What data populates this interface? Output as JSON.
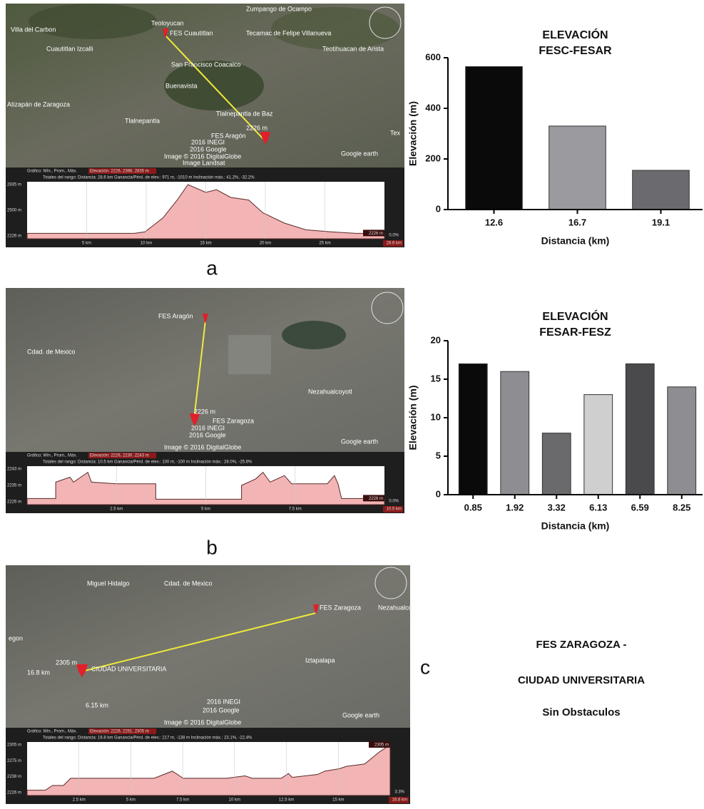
{
  "chart_data": [
    {
      "type": "bar",
      "title": "ELEVACIÓN",
      "subtitle": "FESC-FESAR",
      "x_label": "Distancia (km)",
      "y_label": "Elevación (m)",
      "categories": [
        "12.6",
        "16.7",
        "19.1"
      ],
      "values": [
        565,
        330,
        155
      ],
      "colors": [
        "#0a0a0a",
        "#9a9a9f",
        "#6b6b6f"
      ],
      "ylim": [
        0,
        600
      ],
      "yticks": [
        0,
        200,
        400,
        600
      ]
    },
    {
      "type": "bar",
      "title": "ELEVACIÓN",
      "subtitle": "FESAR-FESZ",
      "x_label": "Distancia (km)",
      "y_label": "Elevación (m)",
      "categories": [
        "0.85",
        "1.92",
        "3.32",
        "6.13",
        "6.59",
        "8.25"
      ],
      "values": [
        17,
        16,
        8,
        13,
        17,
        14
      ],
      "colors": [
        "#0a0a0a",
        "#8e8e92",
        "#6a6a6c",
        "#cfcfcf",
        "#4a4a4c",
        "#8e8e92"
      ],
      "ylim": [
        0,
        20
      ],
      "yticks": [
        0,
        5,
        10,
        15,
        20
      ]
    }
  ],
  "panels": [
    {
      "label": "a",
      "map_labels": [
        "Zumpango de Ocampo",
        "Villa del Carbon",
        "Teoloyucan",
        "FES Cuautitlan",
        "Tecamac de Felipe Villanueva",
        "Teotihuacan de Arista",
        "Cuautitlan Izcalli",
        "San Francisco Coacalco",
        "Buenavista",
        "Atizapán de Zaragoza",
        "Tlalnepantla de Baz",
        "Tlalnepantla",
        "FES Aragón",
        "2226 m",
        "Tex",
        "2016 INEGI",
        "2016 Google",
        "Image © 2016 DigitalGlobe",
        "Image Landsat",
        "Google earth"
      ],
      "profile": {
        "legend": "Gráfico: Mín., Prom., Máx.",
        "elevation": "Elevación: 2226, 2366, 2835 m",
        "totals": "Totales del rango: Distancia: 28.6 km   Ganancia/Pérd. de elev.: 971 m, -1010 m   Inclinación máx.: 41.2%, -32.2%",
        "yticks": [
          "2835 m",
          "2500 m",
          "2226 m"
        ],
        "xticks": [
          "5 km",
          "10 km",
          "15 km",
          "20 km",
          "25 km"
        ],
        "end_elevation": "2226 m",
        "end_slope": "0.0%",
        "end_distance": "28.6 km"
      }
    },
    {
      "label": "b",
      "map_labels": [
        "FES Aragón",
        "Cdad. de Mexico",
        "Nezahualcoyotl",
        "2226 m",
        "FES Zaragoza",
        "2016 INEGI",
        "2016 Google",
        "Image © 2016 DigitalGlobe",
        "Google earth"
      ],
      "profile": {
        "legend": "Gráfico: Mín., Prom., Máx.",
        "elevation": "Elevación: 2226, 2230, 2243 m",
        "totals": "Totales del rango: Distancia: 10.5 km   Ganancia/Pérd. de elev.: 100 m, -100 m   Inclinación máx.: 28.0%, -25.6%",
        "yticks": [
          "2243 m",
          "2235 m",
          "2226 m"
        ],
        "xticks": [
          "2.5 km",
          "5 km",
          "7.5 km"
        ],
        "end_elevation": "2226 m",
        "end_slope": "0.0%",
        "end_distance": "10.5 km"
      }
    },
    {
      "label": "c",
      "map_labels": [
        "Miguel Hidalgo",
        "Cdad. de Mexico",
        "FES Zaragoza",
        "Nezahualco",
        "egon",
        "2305 m",
        "CIUDAD UNIVERSITARIA",
        "16.8 km",
        "Iztapalapa",
        "6.15 km",
        "2016 INEGI",
        "2016 Google",
        "Image © 2016 DigitalGlobe",
        "Google earth"
      ],
      "profile": {
        "legend": "Gráfico: Mín., Prom., Máx.",
        "elevation": "Elevación: 2226, 2251, 2305 m",
        "totals": "Totales del rango: Distancia: 16.8 km   Ganancia/Pérd. de elev.: 217 m, -138 m   Inclinación máx.: 23.1%, -22.4%",
        "yticks": [
          "2305 m",
          "2275 m",
          "2238 m",
          "2226 m"
        ],
        "xticks": [
          "2.5 km",
          "5 km",
          "7.5 km",
          "10 km",
          "12.5 km",
          "15 km"
        ],
        "end_elevation": "2305 m",
        "end_slope": "3.3%",
        "end_distance": "16.8 km"
      }
    }
  ],
  "note": {
    "lines": [
      "FES ZARAGOZA -",
      "CIUDAD UNIVERSITARIA",
      "Sin Obstaculos"
    ]
  }
}
